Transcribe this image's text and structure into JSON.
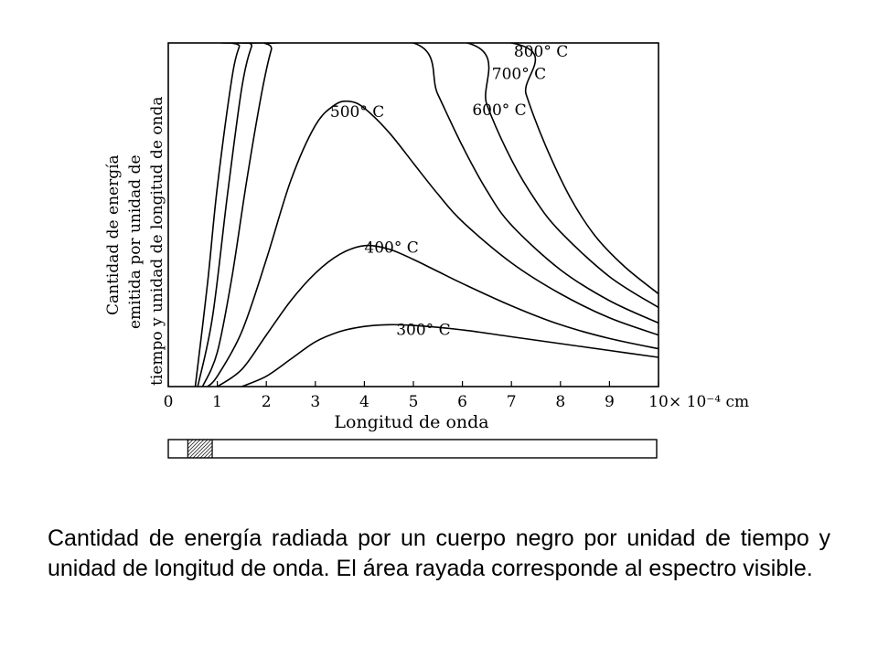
{
  "chart_data": {
    "type": "line",
    "title": "",
    "xlabel": "Longitud de onda",
    "x_unit": "× 10⁻⁴ cm",
    "ylabel_lines": [
      "Cantidad de energía",
      "emitida por unidad de",
      "tiempo y unidad de longitud de onda"
    ],
    "xlim": [
      0,
      10
    ],
    "ylim": [
      0,
      10
    ],
    "x_ticks": [
      "0",
      "1",
      "2",
      "3",
      "4",
      "5",
      "6",
      "7",
      "8",
      "9",
      "10"
    ],
    "grid": false,
    "series": [
      {
        "name": "300° C",
        "x": [
          1.5,
          2.0,
          2.5,
          3.0,
          3.5,
          4.0,
          4.5,
          5.0,
          6.0,
          7.0,
          8.0,
          9.0,
          10.0
        ],
        "y": [
          0.0,
          0.3,
          0.8,
          1.3,
          1.6,
          1.75,
          1.8,
          1.78,
          1.65,
          1.45,
          1.25,
          1.05,
          0.85
        ]
      },
      {
        "name": "400° C",
        "x": [
          1.0,
          1.5,
          2.0,
          2.5,
          3.0,
          3.5,
          4.0,
          4.5,
          5.0,
          5.5,
          6.0,
          7.0,
          8.0,
          9.0,
          10.0
        ],
        "y": [
          0.0,
          0.5,
          1.5,
          2.5,
          3.3,
          3.85,
          4.1,
          4.0,
          3.7,
          3.35,
          3.0,
          2.35,
          1.8,
          1.4,
          1.1
        ]
      },
      {
        "name": "500° C",
        "x": [
          0.8,
          1.0,
          1.5,
          2.0,
          2.5,
          3.0,
          3.4,
          3.7,
          4.0,
          4.5,
          5.0,
          5.5,
          6.0,
          7.0,
          8.0,
          9.0,
          10.0
        ],
        "y": [
          0.0,
          0.3,
          1.6,
          3.7,
          6.0,
          7.6,
          8.2,
          8.3,
          8.1,
          7.4,
          6.5,
          5.6,
          4.8,
          3.6,
          2.7,
          2.0,
          1.5
        ]
      },
      {
        "name": "600° C",
        "x": [
          0.7,
          1.0,
          1.3,
          1.6,
          1.9,
          2.1,
          2.2,
          5.0,
          5.5,
          6.0,
          6.5,
          7.0,
          8.0,
          9.0,
          10.0
        ],
        "y": [
          0.0,
          1.0,
          3.2,
          6.0,
          8.5,
          9.8,
          10.0,
          10.0,
          8.5,
          7.0,
          5.7,
          4.7,
          3.4,
          2.5,
          1.85
        ]
      },
      {
        "name": "700° C",
        "x": [
          0.6,
          0.9,
          1.2,
          1.5,
          1.7,
          1.8,
          6.1,
          6.5,
          7.0,
          7.5,
          8.0,
          9.0,
          10.0
        ],
        "y": [
          0.0,
          2.0,
          5.5,
          8.7,
          9.9,
          10.0,
          10.0,
          8.2,
          6.6,
          5.4,
          4.5,
          3.2,
          2.3
        ]
      },
      {
        "name": "800° C",
        "x": [
          0.55,
          0.8,
          1.0,
          1.3,
          1.45,
          1.5,
          7.0,
          7.3,
          7.7,
          8.2,
          8.7,
          9.3,
          10.0
        ],
        "y": [
          0.0,
          3.0,
          5.8,
          9.0,
          9.9,
          10.0,
          10.0,
          8.5,
          7.0,
          5.5,
          4.4,
          3.5,
          2.7
        ]
      }
    ],
    "label_positions": {
      "300° C": [
        4.65,
        1.5
      ],
      "400° C": [
        4.0,
        3.9
      ],
      "500° C": [
        3.3,
        7.85
      ],
      "600° C": [
        6.2,
        7.9
      ],
      "700° C": [
        6.6,
        8.95
      ],
      "800° C": [
        7.05,
        9.6
      ]
    },
    "spectrum_bar": {
      "xlim": [
        0,
        10
      ],
      "visible_range": [
        0.4,
        0.9
      ]
    }
  },
  "caption": "Cantidad de energía radiada por un cuerpo negro por unidad de tiempo y unidad de longitud de onda. El área rayada corresponde al espectro visible."
}
